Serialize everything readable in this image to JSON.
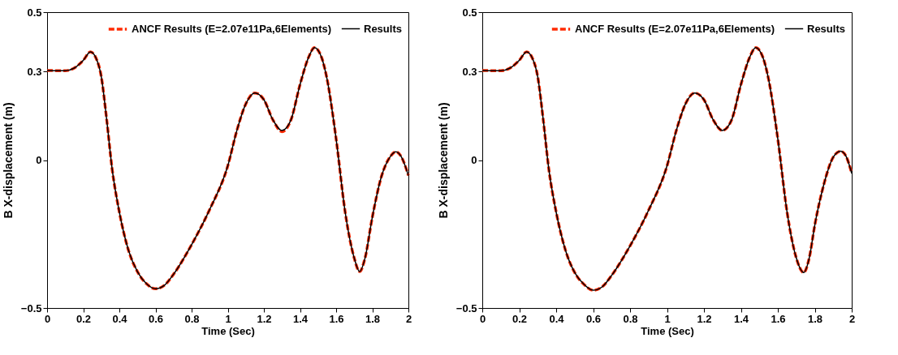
{
  "chart_data": [
    {
      "type": "line",
      "xlabel": "Time (Sec)",
      "ylabel": "B X-displacement (m)",
      "x": [
        0,
        0.1,
        0.15,
        0.2,
        0.24,
        0.27,
        0.3,
        0.33,
        0.36,
        0.4,
        0.45,
        0.5,
        0.55,
        0.6,
        0.65,
        0.7,
        0.8,
        0.9,
        1.0,
        1.05,
        1.1,
        1.15,
        1.2,
        1.25,
        1.3,
        1.35,
        1.4,
        1.45,
        1.48,
        1.52,
        1.55,
        1.6,
        1.65,
        1.7,
        1.73,
        1.76,
        1.8,
        1.85,
        1.9,
        1.93,
        1.96,
        2.0
      ],
      "series": [
        {
          "name": "ANCF Results (E=2.07e11Pa,6Elements)",
          "color": "#ff2a00",
          "line_style": "dashed",
          "values": [
            0.303,
            0.302,
            0.311,
            0.337,
            0.366,
            0.346,
            0.282,
            0.136,
            -0.03,
            -0.176,
            -0.304,
            -0.377,
            -0.418,
            -0.435,
            -0.423,
            -0.386,
            -0.286,
            -0.167,
            -0.02,
            0.099,
            0.19,
            0.227,
            0.204,
            0.136,
            0.096,
            0.136,
            0.255,
            0.351,
            0.38,
            0.346,
            0.273,
            0.071,
            -0.176,
            -0.331,
            -0.377,
            -0.331,
            -0.194,
            -0.057,
            0.012,
            0.028,
            0.012,
            -0.052
          ]
        },
        {
          "name": "Results",
          "color": "#000000",
          "line_style": "solid",
          "values": [
            0.303,
            0.302,
            0.311,
            0.337,
            0.366,
            0.346,
            0.282,
            0.136,
            -0.03,
            -0.176,
            -0.304,
            -0.377,
            -0.418,
            -0.435,
            -0.423,
            -0.386,
            -0.286,
            -0.167,
            -0.02,
            0.099,
            0.19,
            0.227,
            0.204,
            0.136,
            0.1,
            0.136,
            0.255,
            0.351,
            0.38,
            0.346,
            0.273,
            0.071,
            -0.176,
            -0.331,
            -0.377,
            -0.331,
            -0.194,
            -0.057,
            0.012,
            0.028,
            0.012,
            -0.052
          ]
        }
      ],
      "xlim": [
        0,
        2
      ],
      "xticks": [
        0,
        0.2,
        0.4,
        0.6,
        0.8,
        1,
        1.2,
        1.4,
        1.6,
        1.8,
        2
      ],
      "ylim": [
        -0.5,
        0.5
      ],
      "yticks": [
        -0.5,
        0,
        0.3,
        0.5
      ],
      "grid": false,
      "legend": "top right"
    },
    {
      "type": "line",
      "xlabel": "Time (Sec)",
      "ylabel": "B X-displacement (m)",
      "x": [
        0,
        0.1,
        0.15,
        0.2,
        0.24,
        0.27,
        0.3,
        0.33,
        0.36,
        0.4,
        0.45,
        0.5,
        0.55,
        0.6,
        0.65,
        0.7,
        0.8,
        0.9,
        1.0,
        1.05,
        1.1,
        1.15,
        1.2,
        1.25,
        1.3,
        1.35,
        1.4,
        1.45,
        1.48,
        1.52,
        1.55,
        1.6,
        1.65,
        1.7,
        1.74,
        1.77,
        1.8,
        1.85,
        1.9,
        1.94,
        1.97,
        2.0
      ],
      "series": [
        {
          "name": "ANCF Results (E=2.07e11Pa,6Elements)",
          "color": "#ff2a00",
          "line_style": "dashed",
          "values": [
            0.303,
            0.302,
            0.311,
            0.337,
            0.366,
            0.346,
            0.282,
            0.136,
            -0.03,
            -0.176,
            -0.304,
            -0.38,
            -0.42,
            -0.44,
            -0.428,
            -0.39,
            -0.29,
            -0.17,
            -0.02,
            0.099,
            0.19,
            0.227,
            0.204,
            0.136,
            0.1,
            0.136,
            0.255,
            0.351,
            0.38,
            0.346,
            0.273,
            0.071,
            -0.176,
            -0.331,
            -0.38,
            -0.331,
            -0.22,
            -0.08,
            0.01,
            0.03,
            0.012,
            -0.045
          ]
        },
        {
          "name": "Results",
          "color": "#000000",
          "line_style": "solid",
          "values": [
            0.303,
            0.302,
            0.311,
            0.337,
            0.366,
            0.346,
            0.282,
            0.136,
            -0.03,
            -0.176,
            -0.304,
            -0.38,
            -0.42,
            -0.44,
            -0.428,
            -0.39,
            -0.29,
            -0.17,
            -0.02,
            0.099,
            0.19,
            0.227,
            0.204,
            0.136,
            0.1,
            0.136,
            0.255,
            0.351,
            0.38,
            0.346,
            0.273,
            0.071,
            -0.176,
            -0.331,
            -0.38,
            -0.331,
            -0.22,
            -0.08,
            0.01,
            0.03,
            0.012,
            -0.045
          ]
        }
      ],
      "xlim": [
        0,
        2
      ],
      "xticks": [
        0,
        0.2,
        0.4,
        0.6,
        0.8,
        1,
        1.2,
        1.4,
        1.6,
        1.8,
        2
      ],
      "ylim": [
        -0.5,
        0.5
      ],
      "yticks": [
        -0.5,
        0,
        0.3,
        0.5
      ],
      "grid": false,
      "legend": "top right"
    }
  ]
}
